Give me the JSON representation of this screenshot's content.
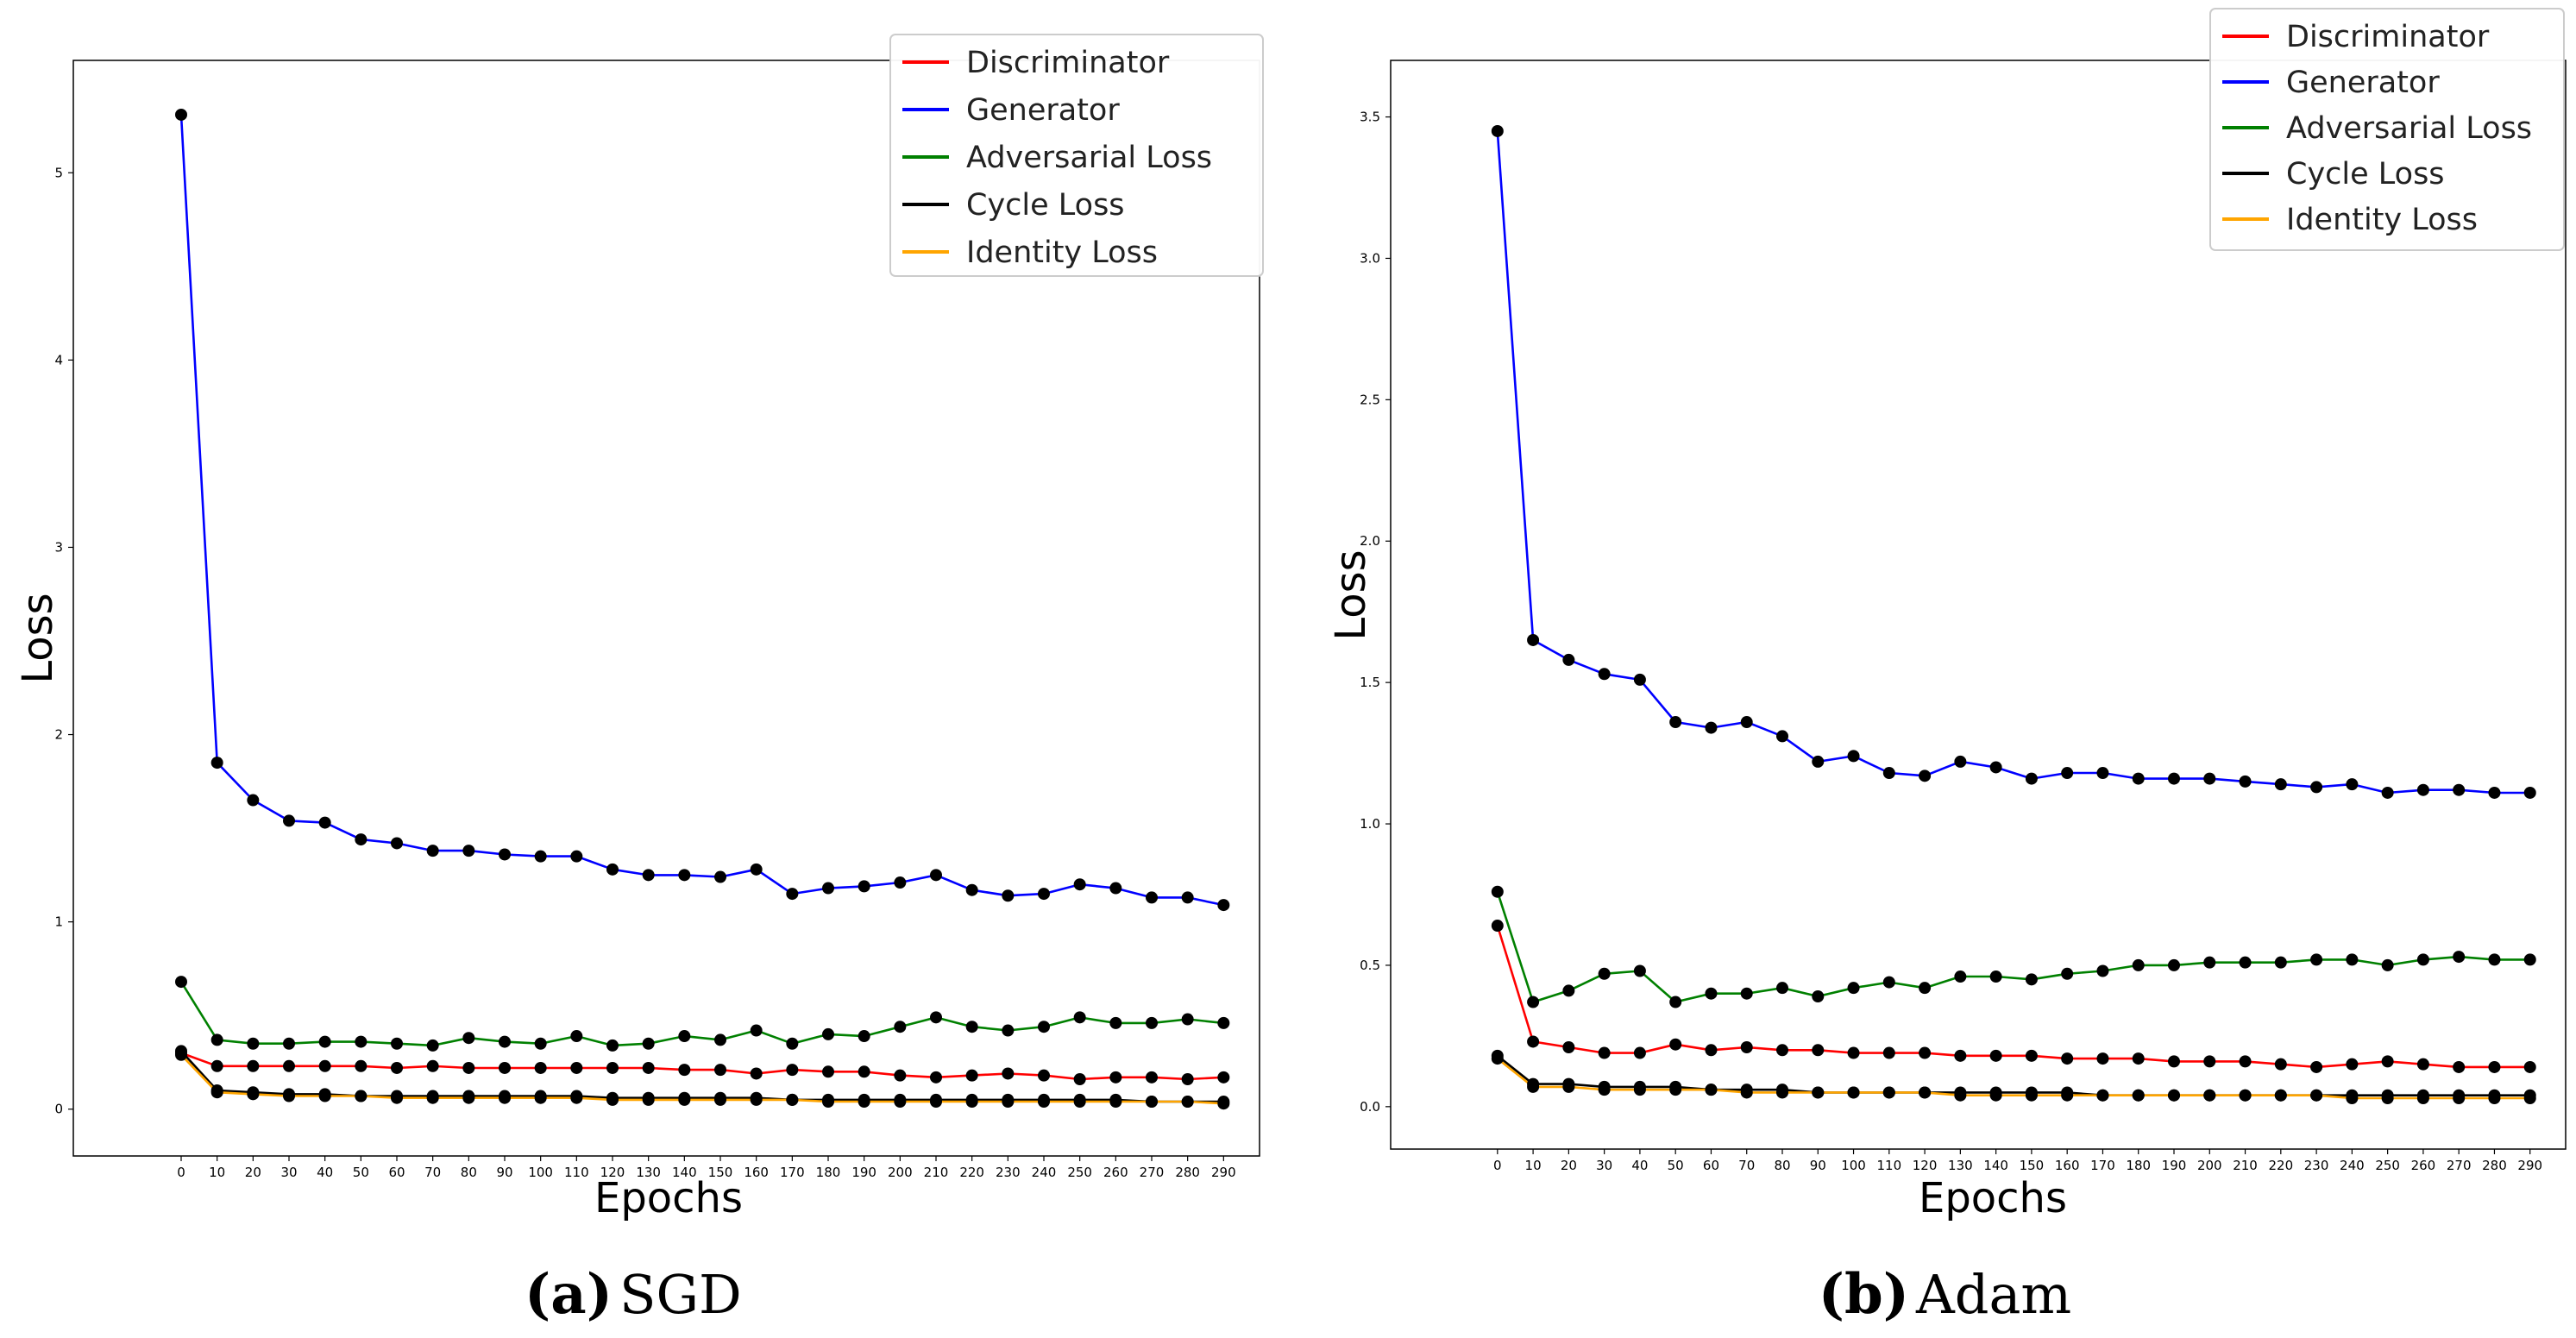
{
  "chart_data": [
    {
      "type": "line",
      "panel_label": "(a)",
      "subtitle": "SGD",
      "xlabel": "Epochs",
      "ylabel": "Loss",
      "x": [
        0,
        10,
        20,
        30,
        40,
        50,
        60,
        70,
        80,
        90,
        100,
        110,
        120,
        130,
        140,
        150,
        160,
        170,
        180,
        190,
        200,
        210,
        220,
        230,
        240,
        250,
        260,
        270,
        280,
        290
      ],
      "xlim": [
        -30,
        300
      ],
      "ylim": [
        -0.25,
        5.6
      ],
      "yticks": [
        0,
        1,
        2,
        3,
        4,
        5
      ],
      "ytick_labels": [
        "0",
        "1",
        "2",
        "3",
        "4",
        "5"
      ],
      "legend_position": "top-right",
      "series": [
        {
          "name": "Discriminator",
          "color": "#ff0000",
          "values": [
            0.3,
            0.23,
            0.23,
            0.23,
            0.23,
            0.23,
            0.22,
            0.23,
            0.22,
            0.22,
            0.22,
            0.22,
            0.22,
            0.22,
            0.21,
            0.21,
            0.19,
            0.21,
            0.2,
            0.2,
            0.18,
            0.17,
            0.18,
            0.19,
            0.18,
            0.16,
            0.17,
            0.17,
            0.16,
            0.17
          ]
        },
        {
          "name": "Generator",
          "color": "#0000ff",
          "values": [
            5.31,
            1.85,
            1.65,
            1.54,
            1.53,
            1.44,
            1.42,
            1.38,
            1.38,
            1.36,
            1.35,
            1.35,
            1.28,
            1.25,
            1.25,
            1.24,
            1.28,
            1.15,
            1.18,
            1.19,
            1.21,
            1.25,
            1.17,
            1.14,
            1.15,
            1.2,
            1.18,
            1.13,
            1.13,
            1.09
          ]
        },
        {
          "name": "Adversarial Loss",
          "color": "#008000",
          "values": [
            0.68,
            0.37,
            0.35,
            0.35,
            0.36,
            0.36,
            0.35,
            0.34,
            0.38,
            0.36,
            0.35,
            0.39,
            0.34,
            0.35,
            0.39,
            0.37,
            0.42,
            0.35,
            0.4,
            0.39,
            0.44,
            0.49,
            0.44,
            0.42,
            0.44,
            0.49,
            0.46,
            0.46,
            0.48,
            0.46
          ]
        },
        {
          "name": "Cycle Loss",
          "color": "#000000",
          "values": [
            0.31,
            0.1,
            0.09,
            0.08,
            0.08,
            0.07,
            0.07,
            0.07,
            0.07,
            0.07,
            0.07,
            0.07,
            0.06,
            0.06,
            0.06,
            0.06,
            0.06,
            0.05,
            0.05,
            0.05,
            0.05,
            0.05,
            0.05,
            0.05,
            0.05,
            0.05,
            0.05,
            0.04,
            0.04,
            0.04
          ]
        },
        {
          "name": "Identity Loss",
          "color": "#ffa500",
          "values": [
            0.29,
            0.09,
            0.08,
            0.07,
            0.07,
            0.07,
            0.06,
            0.06,
            0.06,
            0.06,
            0.06,
            0.06,
            0.05,
            0.05,
            0.05,
            0.05,
            0.05,
            0.05,
            0.04,
            0.04,
            0.04,
            0.04,
            0.04,
            0.04,
            0.04,
            0.04,
            0.04,
            0.04,
            0.04,
            0.03
          ]
        }
      ]
    },
    {
      "type": "line",
      "panel_label": "(b)",
      "subtitle": "Adam",
      "xlabel": "Epochs",
      "ylabel": "Loss",
      "x": [
        0,
        10,
        20,
        30,
        40,
        50,
        60,
        70,
        80,
        90,
        100,
        110,
        120,
        130,
        140,
        150,
        160,
        170,
        180,
        190,
        200,
        210,
        220,
        230,
        240,
        250,
        260,
        270,
        280,
        290
      ],
      "xlim": [
        -30,
        300
      ],
      "ylim": [
        -0.15,
        3.7
      ],
      "yticks": [
        0,
        0.5,
        1,
        1.5,
        2,
        2.5,
        3,
        3.5
      ],
      "ytick_labels": [
        "0.0",
        "0.5",
        "1.0",
        "1.5",
        "2.0",
        "2.5",
        "3.0",
        "3.5"
      ],
      "legend_position": "top-right",
      "series": [
        {
          "name": "Discriminator",
          "color": "#ff0000",
          "values": [
            0.64,
            0.23,
            0.21,
            0.19,
            0.19,
            0.22,
            0.2,
            0.21,
            0.2,
            0.2,
            0.19,
            0.19,
            0.19,
            0.18,
            0.18,
            0.18,
            0.17,
            0.17,
            0.17,
            0.16,
            0.16,
            0.16,
            0.15,
            0.14,
            0.15,
            0.16,
            0.15,
            0.14,
            0.14,
            0.14
          ]
        },
        {
          "name": "Generator",
          "color": "#0000ff",
          "values": [
            3.45,
            1.65,
            1.58,
            1.53,
            1.51,
            1.36,
            1.34,
            1.36,
            1.31,
            1.22,
            1.24,
            1.18,
            1.17,
            1.22,
            1.2,
            1.16,
            1.18,
            1.18,
            1.16,
            1.16,
            1.16,
            1.15,
            1.14,
            1.13,
            1.14,
            1.11,
            1.12,
            1.12,
            1.11,
            1.11
          ]
        },
        {
          "name": "Adversarial Loss",
          "color": "#008000",
          "values": [
            0.76,
            0.37,
            0.41,
            0.47,
            0.48,
            0.37,
            0.4,
            0.4,
            0.42,
            0.39,
            0.42,
            0.44,
            0.42,
            0.46,
            0.46,
            0.45,
            0.47,
            0.48,
            0.5,
            0.5,
            0.51,
            0.51,
            0.51,
            0.52,
            0.52,
            0.5,
            0.52,
            0.53,
            0.52,
            0.52
          ]
        },
        {
          "name": "Cycle Loss",
          "color": "#000000",
          "values": [
            0.18,
            0.08,
            0.08,
            0.07,
            0.07,
            0.07,
            0.06,
            0.06,
            0.06,
            0.05,
            0.05,
            0.05,
            0.05,
            0.05,
            0.05,
            0.05,
            0.05,
            0.04,
            0.04,
            0.04,
            0.04,
            0.04,
            0.04,
            0.04,
            0.04,
            0.04,
            0.04,
            0.04,
            0.04,
            0.04
          ]
        },
        {
          "name": "Identity Loss",
          "color": "#ffa500",
          "values": [
            0.17,
            0.07,
            0.07,
            0.06,
            0.06,
            0.06,
            0.06,
            0.05,
            0.05,
            0.05,
            0.05,
            0.05,
            0.05,
            0.04,
            0.04,
            0.04,
            0.04,
            0.04,
            0.04,
            0.04,
            0.04,
            0.04,
            0.04,
            0.04,
            0.03,
            0.03,
            0.03,
            0.03,
            0.03,
            0.03
          ]
        }
      ]
    }
  ]
}
